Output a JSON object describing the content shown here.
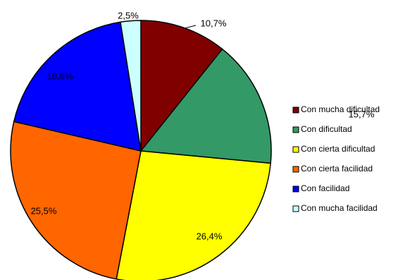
{
  "chart_data": {
    "type": "pie",
    "start_angle_deg": 0,
    "direction": "clockwise",
    "slices": [
      {
        "name": "Con mucha dificultad",
        "value": 10.7,
        "label": "10,7%",
        "color": "#800000"
      },
      {
        "name": "Con dificultad",
        "value": 15.7,
        "label": "15,7%",
        "color": "#339966"
      },
      {
        "name": "Con cierta dificultad",
        "value": 26.4,
        "label": "26,4%",
        "color": "#FFFF00"
      },
      {
        "name": "Con cierta facilidad",
        "value": 25.5,
        "label": "25,5%",
        "color": "#FF6600"
      },
      {
        "name": "Con facilidad",
        "value": 18.8,
        "label": "18,8%",
        "color": "#0000FF"
      },
      {
        "name": "Con mucha facilidad",
        "value": 2.5,
        "label": "2,5%",
        "color": "#CCFFFF"
      }
    ],
    "legend_position": "right",
    "outline_color": "#000000"
  }
}
